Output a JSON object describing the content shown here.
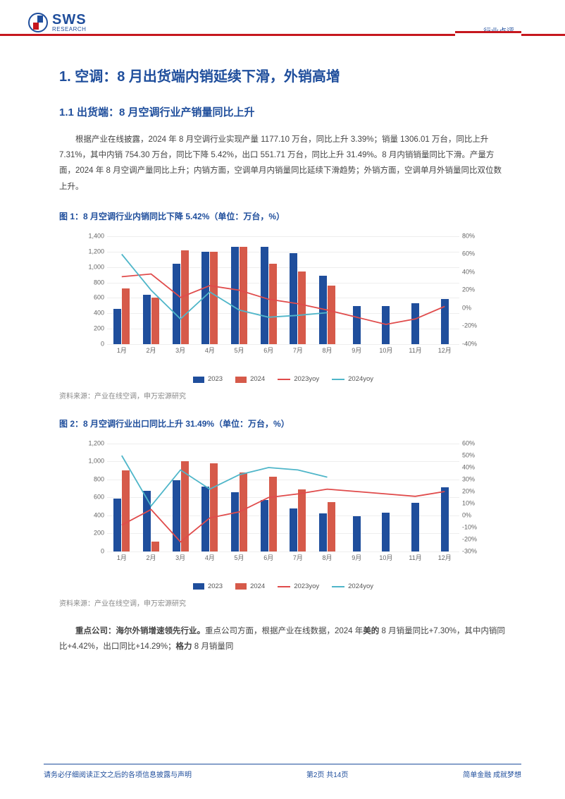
{
  "header": {
    "logo_main": "SWS",
    "logo_sub": "RESEARCH",
    "doc_type": "行业点评"
  },
  "section1": {
    "title": "1. 空调：8 月出货端内销延续下滑，外销高增",
    "sub11_title": "1.1 出货端：8 月空调行业产销量同比上升",
    "paragraph": "根据产业在线披露，2024 年 8 月空调行业实现产量 1177.10 万台，同比上升 3.39%；销量 1306.01 万台，同比上升 7.31%，其中内销 754.30 万台，同比下降 5.42%，出口 551.71 万台，同比上升 31.49%。8 月内销销量同比下滑。产量方面，2024 年 8 月空调产量同比上升；内销方面，空调单月内销量同比延续下滑趋势；外销方面，空调单月外销量同比双位数上升。"
  },
  "fig1": {
    "title": "图 1：8 月空调行业内销同比下降 5.42%（单位：万台，%）",
    "source": "资料来源：产业在线空调，申万宏源研究",
    "type": "bar_line_combo",
    "months": [
      "1月",
      "2月",
      "3月",
      "4月",
      "5月",
      "6月",
      "7月",
      "8月",
      "9月",
      "10月",
      "11月",
      "12月"
    ],
    "y1_max": 1400,
    "y1_step": 200,
    "y2_min": -40,
    "y2_max": 80,
    "y2_step": 20,
    "bar_2023": [
      460,
      640,
      1040,
      1200,
      1260,
      1260,
      1180,
      890,
      490,
      490,
      530,
      590
    ],
    "bar_2024": [
      720,
      600,
      1220,
      1200,
      1260,
      1040,
      940,
      760,
      null,
      null,
      null,
      null
    ],
    "line_2023yoy": [
      35,
      38,
      12,
      25,
      20,
      10,
      5,
      -2,
      -10,
      -18,
      -12,
      2
    ],
    "line_2024yoy": [
      60,
      20,
      -12,
      18,
      -2,
      -10,
      -8,
      -5,
      null,
      null,
      null,
      null
    ],
    "colors": {
      "bar_2023": "#1f4e9c",
      "bar_2024": "#d65a4a",
      "line_2023yoy": "#e04b4b",
      "line_2024yoy": "#4fb6c9",
      "grid": "#eeeeee",
      "axis": "#bbbbbb"
    },
    "legend": [
      "2023",
      "2024",
      "2023yoy",
      "2024yoy"
    ]
  },
  "fig2": {
    "title": "图 2：8 月空调行业出口同比上升 31.49%（单位：万台，%）",
    "source": "资料来源：产业在线空调，申万宏源研究",
    "type": "bar_line_combo",
    "months": [
      "1月",
      "2月",
      "3月",
      "4月",
      "5月",
      "6月",
      "7月",
      "8月",
      "9月",
      "10月",
      "11月",
      "12月"
    ],
    "y1_max": 1200,
    "y1_step": 200,
    "y2_min": -30,
    "y2_max": 60,
    "y2_step": 10,
    "bar_2023": [
      590,
      670,
      790,
      720,
      660,
      570,
      480,
      420,
      390,
      430,
      540,
      710
    ],
    "bar_2024": [
      900,
      110,
      1000,
      980,
      880,
      830,
      690,
      550,
      null,
      null,
      null,
      null
    ],
    "line_2023yoy": [
      -8,
      5,
      -22,
      -2,
      3,
      15,
      18,
      22,
      20,
      18,
      16,
      20
    ],
    "line_2024yoy": [
      50,
      8,
      38,
      22,
      34,
      40,
      38,
      32,
      null,
      null,
      null,
      null
    ],
    "colors": {
      "bar_2023": "#1f4e9c",
      "bar_2024": "#d65a4a",
      "line_2023yoy": "#e04b4b",
      "line_2024yoy": "#4fb6c9",
      "grid": "#eeeeee",
      "axis": "#bbbbbb"
    },
    "legend": [
      "2023",
      "2024",
      "2023yoy",
      "2024yoy"
    ]
  },
  "companies_p": {
    "lead_bold": "重点公司：海尔外销增速领先行业。",
    "rest_a": "重点公司方面，根据产业在线数据，2024 年",
    "midea": "美的",
    "rest_b": " 8 月销量同比+7.30%，其中内销同比+4.42%，出口同比+14.29%；",
    "gree": "格力",
    "rest_c": " 8 月销量同"
  },
  "footer": {
    "left": "请务必仔细阅读正文之后的各项信息披露与声明",
    "center": "第2页 共14页",
    "right": "简单金融 成就梦想"
  }
}
